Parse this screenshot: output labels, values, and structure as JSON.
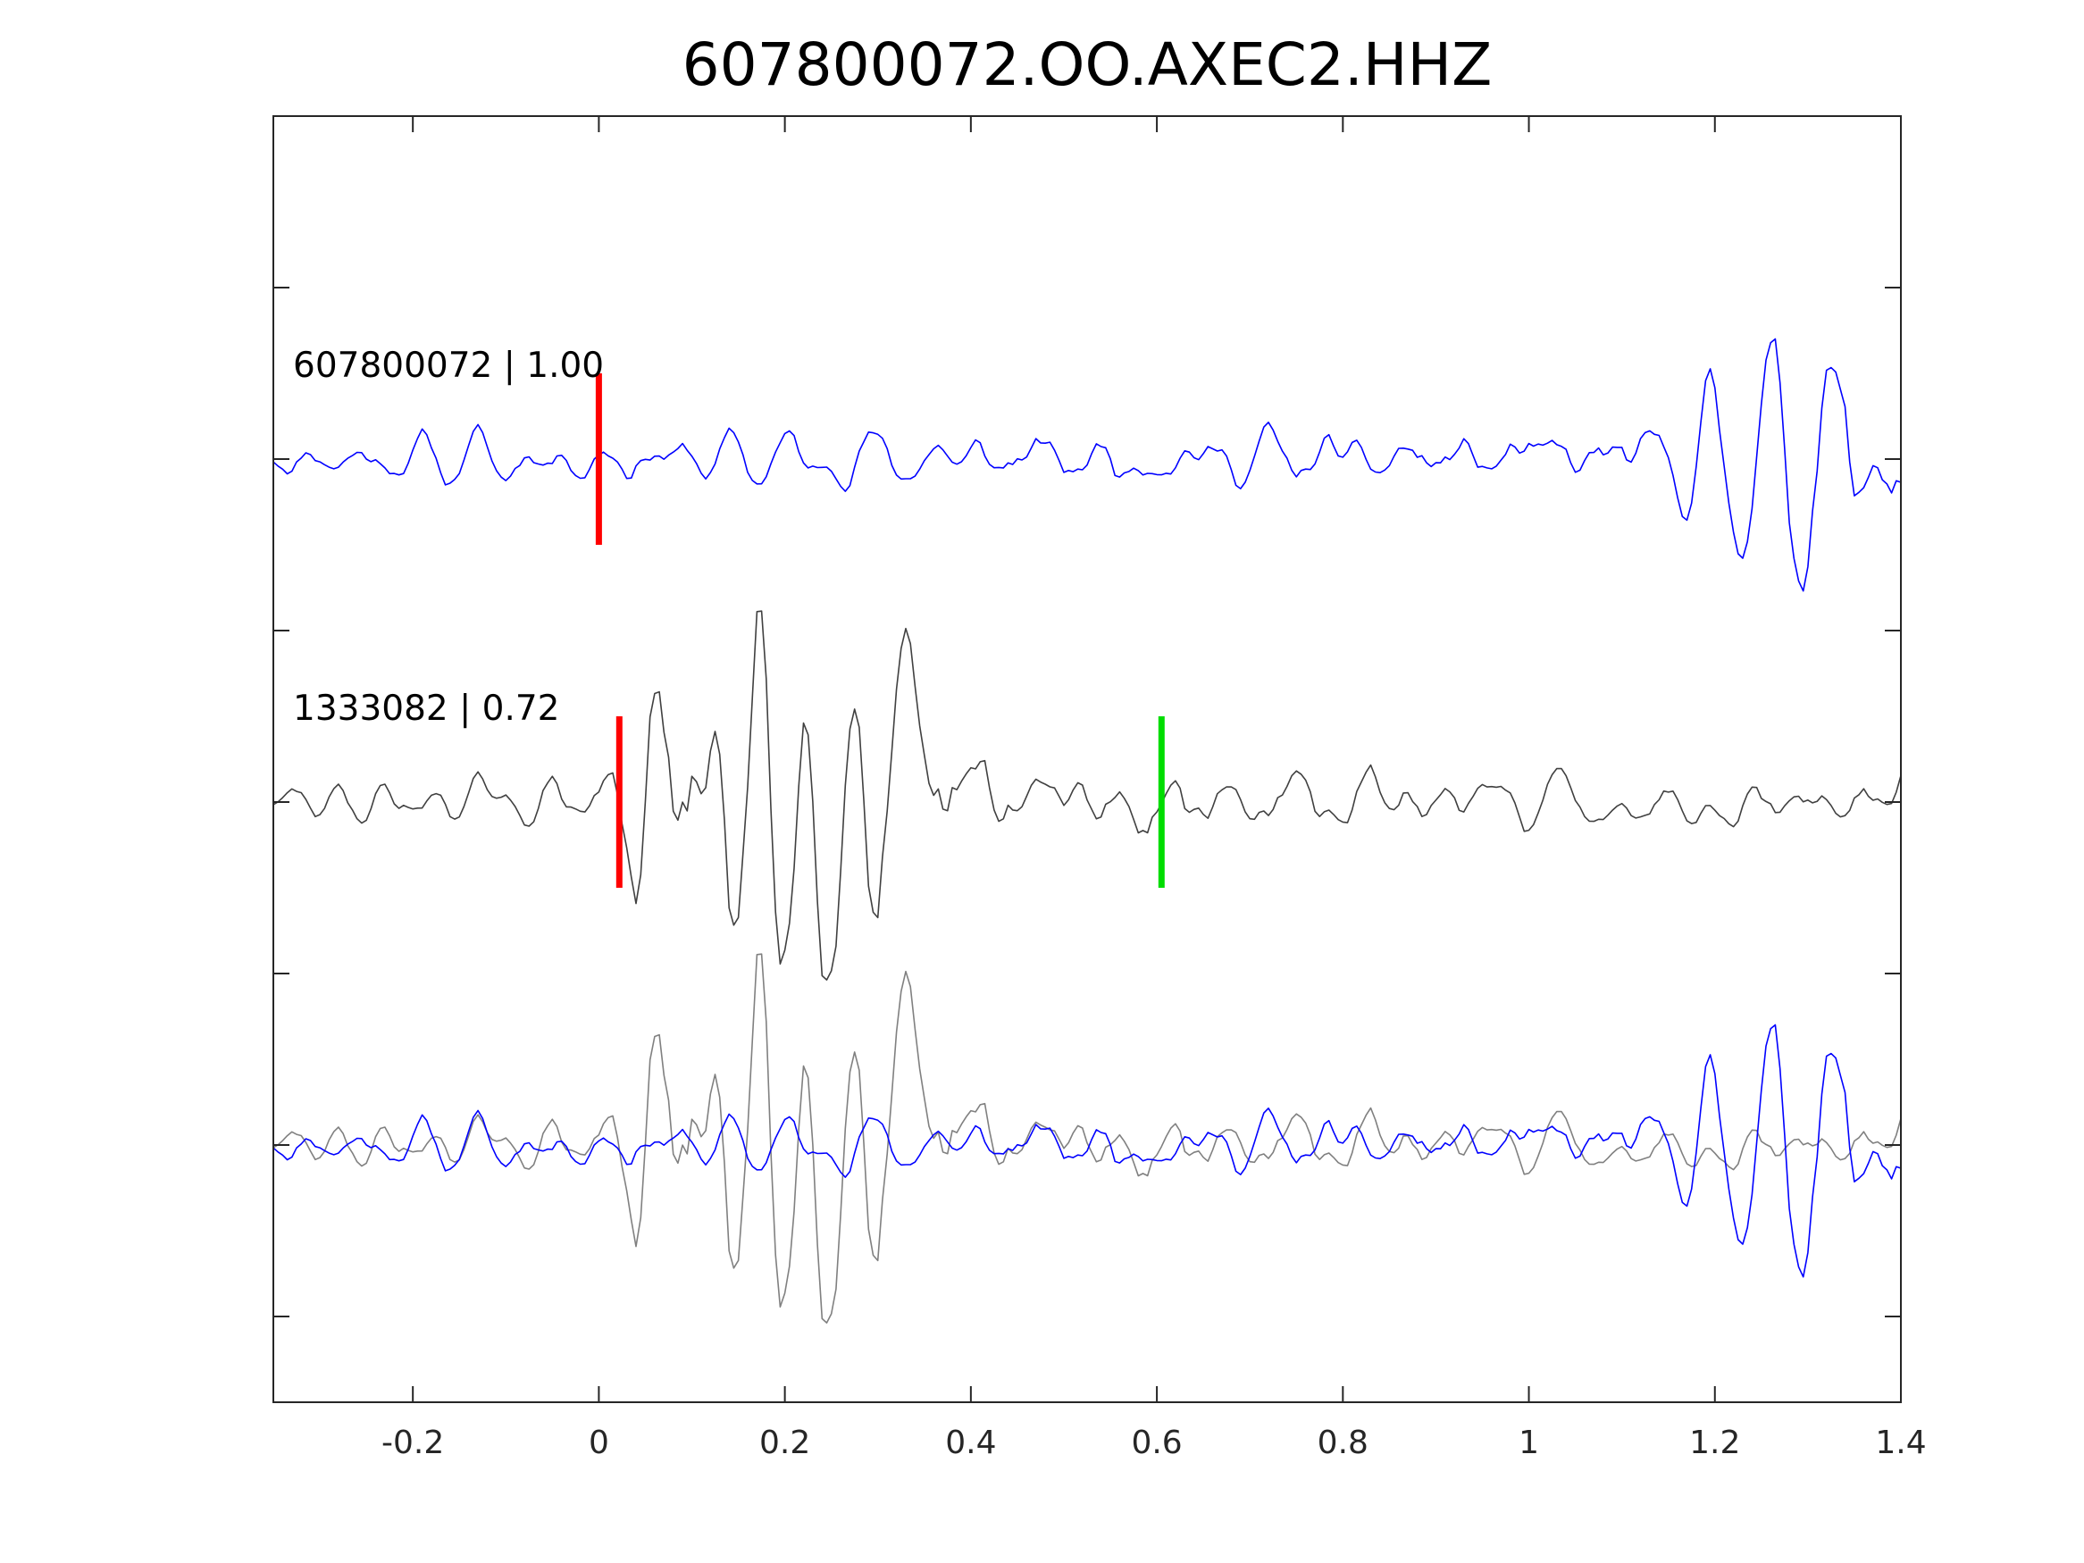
{
  "chart_data": {
    "type": "line",
    "title": "607800072.OO.AXEC2.HHZ",
    "xlabel": "",
    "ylabel": "",
    "xlim": [
      -0.35,
      1.4
    ],
    "ylim": [
      0,
      7.5
    ],
    "grid": false,
    "x_ticks": [
      -0.2,
      0,
      0.2,
      0.4,
      0.6,
      0.8,
      1,
      1.2,
      1.4
    ],
    "x_tick_labels": [
      "-0.2",
      "0",
      "0.2",
      "0.4",
      "0.6",
      "0.8",
      "1",
      "1.2",
      "1.4"
    ],
    "y_ticks": [
      0.5,
      1.5,
      2.5,
      3.5,
      4.5,
      5.5,
      6.5
    ],
    "traces": [
      {
        "label": "607800072 | 1.00",
        "color": "#0000ff",
        "offset": 5.5,
        "sample_interval": 0.005,
        "seed": 11,
        "envelope": [
          [
            -0.35,
            0.12
          ],
          [
            0.0,
            0.15
          ],
          [
            0.4,
            0.17
          ],
          [
            0.9,
            0.17
          ],
          [
            1.15,
            0.23
          ],
          [
            1.25,
            0.45
          ],
          [
            1.4,
            0.7
          ]
        ],
        "picks": [
          {
            "x": 0.0,
            "color": "#ff0000"
          }
        ]
      },
      {
        "label": "1333082 | 0.72",
        "color": "#404040",
        "offset": 3.5,
        "sample_interval": 0.005,
        "seed": 29,
        "envelope": [
          [
            -0.35,
            0.1
          ],
          [
            -0.03,
            0.12
          ],
          [
            0.02,
            0.4
          ],
          [
            0.08,
            0.7
          ],
          [
            0.14,
            0.98
          ],
          [
            0.28,
            0.82
          ],
          [
            0.36,
            0.52
          ],
          [
            0.45,
            0.3
          ],
          [
            0.6,
            0.22
          ],
          [
            0.75,
            0.17
          ],
          [
            1.0,
            0.13
          ],
          [
            1.3,
            0.14
          ],
          [
            1.4,
            0.2
          ]
        ],
        "picks": [
          {
            "x": 0.022,
            "color": "#ff0000"
          },
          {
            "x": 0.605,
            "color": "#00dd00"
          }
        ]
      }
    ],
    "overlay": {
      "offset": 1.5,
      "traces": [
        1,
        0
      ],
      "colors": [
        "#808080",
        "#0000ff"
      ]
    }
  }
}
